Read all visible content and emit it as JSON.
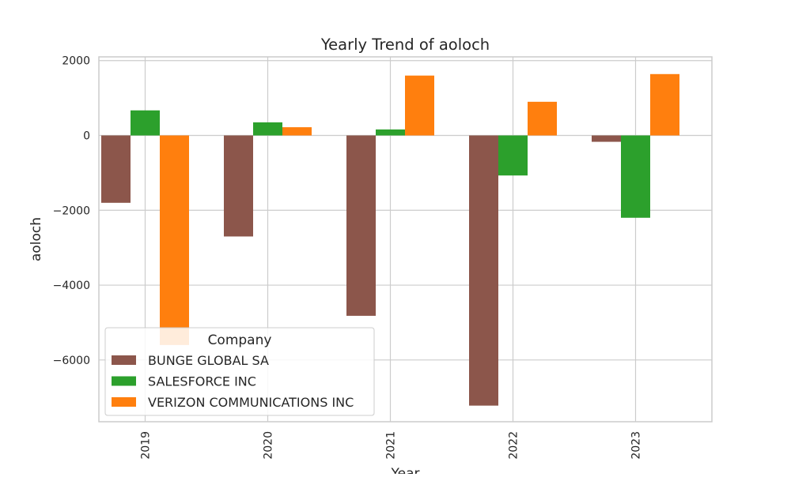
{
  "chart_data": {
    "type": "bar",
    "title": "Yearly Trend of aoloch",
    "xlabel": "Year",
    "ylabel": "aoloch",
    "categories": [
      "2019",
      "2020",
      "2021",
      "2022",
      "2023"
    ],
    "series": [
      {
        "name": "BUNGE GLOBAL SA",
        "color": "#8c564b",
        "values": [
          -1800,
          -2700,
          -4820,
          -7220,
          -170
        ]
      },
      {
        "name": "SALESFORCE INC",
        "color": "#2ca02c",
        "values": [
          670,
          350,
          160,
          -1070,
          -2200
        ]
      },
      {
        "name": "VERIZON COMMUNICATIONS INC",
        "color": "#ff7f0e",
        "values": [
          -5600,
          220,
          1600,
          900,
          1640
        ]
      }
    ],
    "yticks": [
      2000,
      0,
      -2000,
      -4000,
      -6000
    ],
    "ytick_labels": [
      "2000",
      "0",
      "−2000",
      "−4000",
      "−6000"
    ],
    "ylim": [
      -7650,
      2100
    ],
    "grid": true,
    "legend": {
      "title": "Company",
      "placement": "lower-left"
    }
  }
}
